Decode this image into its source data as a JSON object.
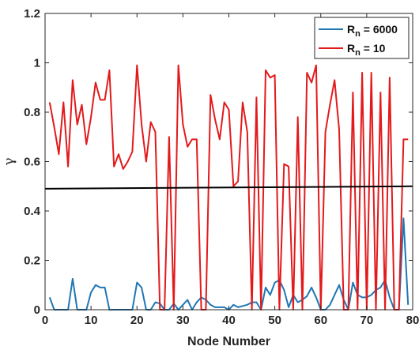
{
  "chart_data": {
    "type": "line",
    "xlabel": "Node Number",
    "ylabel": "γ",
    "xlim": [
      0,
      80
    ],
    "ylim": [
      0,
      1.2
    ],
    "xticks": [
      "0",
      "10",
      "20",
      "30",
      "40",
      "50",
      "60",
      "70",
      "80"
    ],
    "yticks": [
      "0",
      "0.2",
      "0.4",
      "0.6",
      "0.8",
      "1",
      "1.2"
    ],
    "grid": false,
    "legend_position": "top-right",
    "reference_line": {
      "y": [
        0.49,
        0.5
      ],
      "color": "#000000"
    },
    "series": [
      {
        "legend": {
          "main": "R",
          "sub": "n",
          "suffix": " = 6000"
        },
        "color": "#1f77b4",
        "x": [
          1,
          2,
          3,
          4,
          5,
          6,
          7,
          8,
          9,
          10,
          11,
          12,
          13,
          14,
          15,
          16,
          17,
          18,
          19,
          20,
          21,
          22,
          23,
          24,
          25,
          26,
          27,
          28,
          29,
          30,
          31,
          32,
          33,
          34,
          35,
          36,
          37,
          38,
          39,
          40,
          41,
          42,
          43,
          44,
          45,
          46,
          47,
          48,
          49,
          50,
          51,
          52,
          53,
          54,
          55,
          56,
          57,
          58,
          59,
          60,
          61,
          62,
          63,
          64,
          65,
          66,
          67,
          68,
          69,
          70,
          71,
          72,
          73,
          74,
          75,
          76,
          77,
          78,
          79
        ],
        "values": [
          0.05,
          0,
          0,
          0,
          0,
          0.125,
          0,
          0,
          0,
          0.07,
          0.1,
          0.09,
          0.09,
          0,
          0,
          0,
          0,
          0,
          0,
          0.11,
          0.09,
          0,
          0,
          0.03,
          0.025,
          0,
          0,
          0.025,
          0,
          0.02,
          0.04,
          0,
          0.03,
          0.05,
          0.04,
          0.02,
          0.01,
          0.01,
          0.01,
          0,
          0.02,
          0.01,
          0.015,
          0.02,
          0.03,
          0.03,
          0,
          0.09,
          0.06,
          0.11,
          0.12,
          0.08,
          0.01,
          0.06,
          0.03,
          0.04,
          0.055,
          0.09,
          0.05,
          0,
          0,
          0.02,
          0.06,
          0.1,
          0.04,
          0,
          0.11,
          0.06,
          0.05,
          0.05,
          0.06,
          0.08,
          0.09,
          0.12,
          0.05,
          0,
          0,
          0.37,
          0.02
        ]
      },
      {
        "legend": {
          "main": "R",
          "sub": "n",
          "suffix": " = 10"
        },
        "color": "#e31a1c",
        "x": [
          1,
          2,
          3,
          4,
          5,
          6,
          7,
          8,
          9,
          10,
          11,
          12,
          13,
          14,
          15,
          16,
          17,
          18,
          19,
          20,
          21,
          22,
          23,
          24,
          25,
          26,
          27,
          28,
          29,
          30,
          31,
          32,
          33,
          34,
          35,
          36,
          37,
          38,
          39,
          40,
          41,
          42,
          43,
          44,
          45,
          46,
          47,
          48,
          49,
          50,
          51,
          52,
          53,
          54,
          55,
          56,
          57,
          58,
          59,
          60,
          61,
          62,
          63,
          64,
          65,
          66,
          67,
          68,
          69,
          70,
          71,
          72,
          73,
          74,
          75,
          76,
          77,
          78,
          79
        ],
        "values": [
          0.84,
          0.74,
          0.63,
          0.84,
          0.58,
          0.93,
          0.75,
          0.83,
          0.67,
          0.78,
          0.92,
          0.85,
          0.85,
          0.97,
          0.58,
          0.63,
          0.57,
          0.6,
          0.64,
          0.99,
          0.75,
          0.6,
          0.76,
          0.72,
          0,
          0,
          0.7,
          0,
          0.99,
          0.75,
          0.66,
          0.69,
          0.69,
          0,
          0,
          0.87,
          0.77,
          0.69,
          0.84,
          0.81,
          0.5,
          0.52,
          0.84,
          0.72,
          0,
          0.86,
          0,
          0.97,
          0.94,
          0.95,
          0,
          0.59,
          0.58,
          0,
          0.78,
          0,
          0.96,
          0.92,
          0.99,
          0,
          0.72,
          0.83,
          0.93,
          0.73,
          0,
          0,
          0.88,
          0,
          0.96,
          0,
          0.96,
          0,
          0.88,
          0,
          0.94,
          0,
          0,
          0.69,
          0.69
        ]
      }
    ]
  }
}
